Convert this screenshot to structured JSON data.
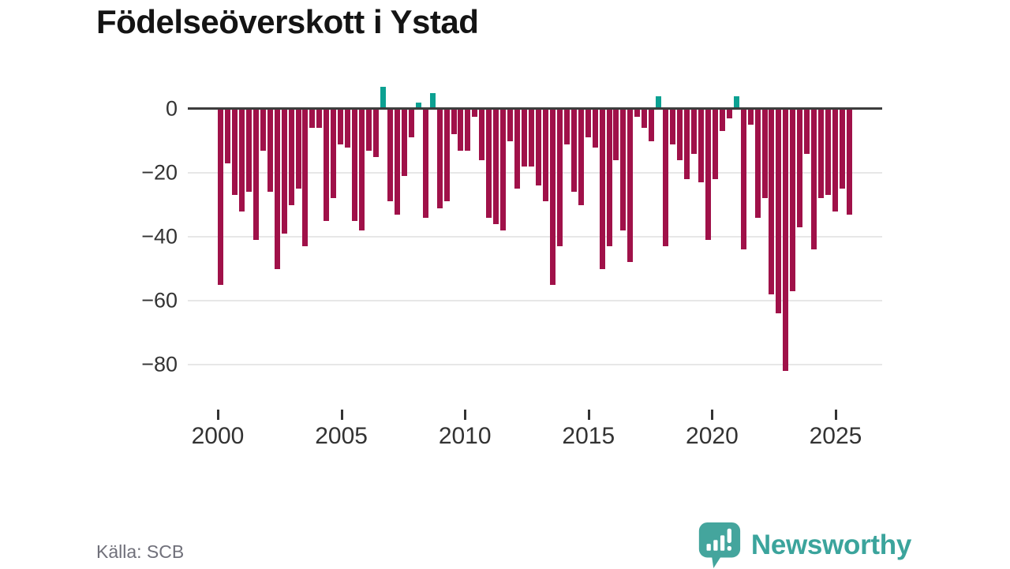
{
  "title": "Födelseöverskott i Ystad",
  "source": "Källa: SCB",
  "brand": {
    "name": "Newsworthy",
    "logo_icon": "newsworthy-speech-bubble-chart-icon"
  },
  "colors": {
    "negative_bar": "#a01149",
    "positive_bar": "#0ca192",
    "axis": "#3d3d3d",
    "gridline": "#e7e7e7",
    "tick_label": "#333333",
    "title": "#141414",
    "source_text": "#70707a",
    "brand_teal": "#3ba49c",
    "background": "#ffffff"
  },
  "chart_data": {
    "type": "bar",
    "title": "Födelseöverskott i Ystad",
    "xlabel": "",
    "ylabel": "",
    "grid": "horizontal",
    "legend": "none",
    "x_axis": {
      "tick_labels": [
        "2000",
        "2005",
        "2010",
        "2015",
        "2020",
        "2025"
      ],
      "tick_years": [
        2000,
        2005,
        2010,
        2015,
        2020,
        2025
      ],
      "start_year": 2000
    },
    "y_axis": {
      "tick_labels": [
        "0",
        "−20",
        "−40",
        "−60",
        "−80"
      ],
      "tick_values": [
        0,
        -20,
        -40,
        -60,
        -80
      ],
      "range": [
        -88,
        10
      ]
    },
    "values": [
      -55,
      -17,
      -27,
      -32,
      -26,
      -41,
      -13,
      -26,
      -50,
      -39,
      -30,
      -25,
      -43,
      -6,
      -6,
      -35,
      -28,
      -11,
      -12,
      -35,
      -38,
      -13,
      -15,
      7,
      -29,
      -33,
      -21,
      -9,
      2,
      -34,
      5,
      -31,
      -29,
      -8,
      -13,
      -13,
      -2.5,
      -16,
      -34,
      -36,
      -38,
      -10,
      -25,
      -18,
      -18,
      -24,
      -29,
      -55,
      -43,
      -11,
      -26,
      -30,
      -9,
      -12,
      -50,
      -43,
      -16,
      -38,
      -48,
      -2.5,
      -6,
      -10,
      4,
      -43,
      -11,
      -16,
      -22,
      -14,
      -23,
      -41,
      -22,
      -7,
      -3,
      4,
      -44,
      -5,
      -34,
      -28,
      -58,
      -64,
      -82,
      -57,
      -37,
      -14,
      -44,
      -28,
      -27,
      -32,
      -25,
      -33
    ]
  }
}
